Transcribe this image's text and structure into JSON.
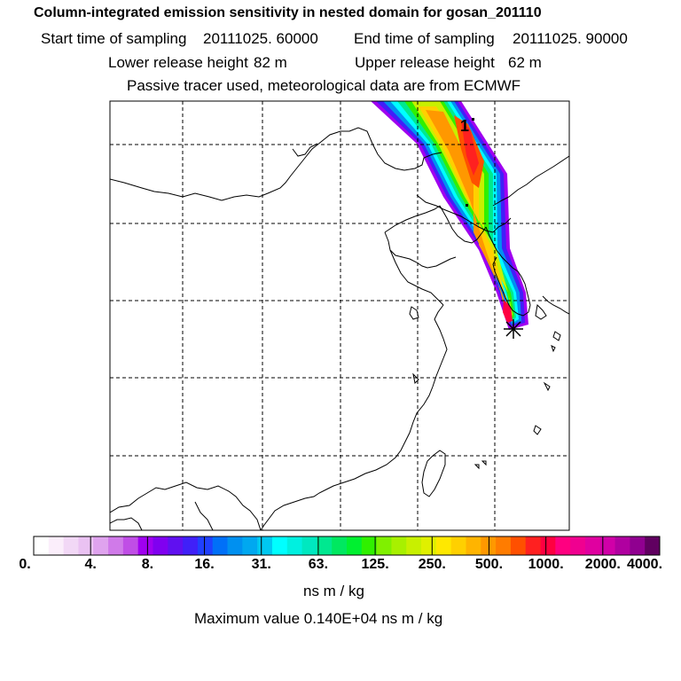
{
  "header": {
    "title": "Column-integrated emission sensitivity in nested domain for gosan_201110",
    "start_label": "Start time of sampling",
    "start_value": "20111025. 60000",
    "end_label": "End time of sampling",
    "end_value": "20111025. 90000",
    "lower_label": "Lower release height",
    "lower_value": "82 m",
    "upper_label": "Upper release height",
    "upper_value": "62 m",
    "tracer_info": "Passive tracer used, meteorological data are from ECMWF"
  },
  "map": {
    "marker_label": "1",
    "receptor_marker": "receptor-star"
  },
  "colorbar": {
    "ticks": [
      "0.",
      "4.",
      "8.",
      "16.",
      "31.",
      "63.",
      "125.",
      "250.",
      "500.",
      "1000.",
      "2000.",
      "4000."
    ],
    "colors": [
      "#ffffff",
      "#fbeefb",
      "#f2d8f6",
      "#eac2f2",
      "#dfa3ee",
      "#d07ae9",
      "#c04ee6",
      "#a000f0",
      "#8000f0",
      "#6010f0",
      "#4020f8",
      "#2040ff",
      "#0070f8",
      "#0090f0",
      "#00a8f0",
      "#00c8f0",
      "#00ffff",
      "#00f0e0",
      "#00e8c0",
      "#00e890",
      "#00e860",
      "#00f030",
      "#30f000",
      "#80f000",
      "#a8f000",
      "#c8f000",
      "#e0f000",
      "#ffe800",
      "#ffd000",
      "#ffb400",
      "#ff9800",
      "#ff7c00",
      "#ff5000",
      "#ff2020",
      "#ff0040",
      "#ff0080",
      "#f00090",
      "#e000a0",
      "#d000a8",
      "#b000a0",
      "#900090",
      "#600060"
    ],
    "unit": "ns m / kg",
    "max_text": "Maximum value  0.140E+04 ns m / kg"
  }
}
